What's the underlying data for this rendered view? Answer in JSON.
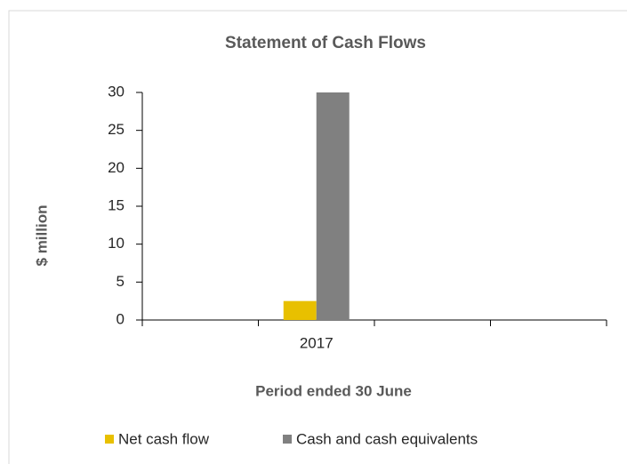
{
  "chart_data": {
    "type": "bar",
    "title": "Statement of Cash Flows",
    "y_label": "$ million",
    "x_label": "Period ended 30 June",
    "categories": [
      null,
      "2017",
      null,
      null
    ],
    "series": [
      {
        "name": "Net cash flow",
        "color": "#e8c000",
        "values": [
          null,
          2.5,
          null,
          null
        ]
      },
      {
        "name": "Cash and cash equivalents",
        "color": "#808080",
        "values": [
          null,
          30,
          null,
          null
        ]
      }
    ],
    "ylim": [
      0,
      30
    ],
    "yticks": [
      0,
      5,
      10,
      15,
      20,
      25,
      30
    ],
    "grid": false,
    "legend": "bottom"
  }
}
